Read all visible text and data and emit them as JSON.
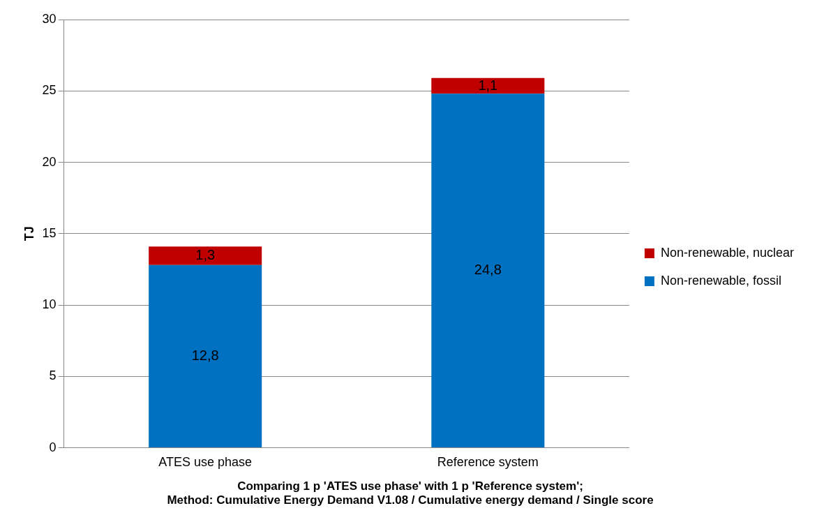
{
  "chart_data": {
    "type": "bar",
    "stacked": true,
    "title": "Comparing 1 p 'ATES use phase' with 1 p 'Reference system';\nMethod: Cumulative Energy Demand V1.08 / Cumulative energy demand / Single score",
    "ylabel": "TJ",
    "categories": [
      "ATES use phase",
      "Reference system"
    ],
    "series": [
      {
        "name": "Non-renewable, fossil",
        "color": "#0070c0",
        "values": [
          12.8,
          24.8
        ],
        "value_labels": [
          "12,8",
          "24,8"
        ]
      },
      {
        "name": "Non-renewable, nuclear",
        "color": "#c00000",
        "values": [
          1.3,
          1.1
        ],
        "value_labels": [
          "1,3",
          "1,1"
        ]
      }
    ],
    "ylim": [
      0,
      30
    ],
    "yticks": [
      0,
      5,
      10,
      15,
      20,
      25,
      30
    ],
    "grid": "y",
    "legend": "right"
  }
}
